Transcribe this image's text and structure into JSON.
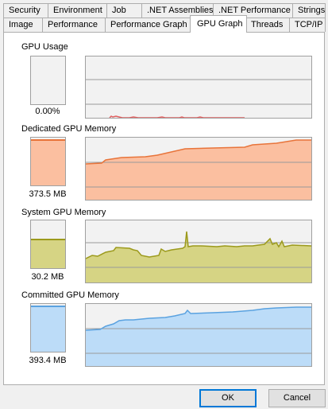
{
  "tabs_row1": [
    "Security",
    "Environment",
    "Job",
    ".NET Assemblies",
    ".NET Performance",
    "Strings"
  ],
  "tabs_row2": [
    "Image",
    "Performance",
    "Performance Graph",
    "GPU Graph",
    "Threads",
    "TCP/IP"
  ],
  "active_tab": "GPU Graph",
  "sections": [
    {
      "title": "GPU Usage",
      "value": "0.00%",
      "level": 0.0,
      "fill": "#f2f2f2",
      "stroke": "#e06060"
    },
    {
      "title": "Dedicated GPU Memory",
      "value": "373.5 MB",
      "level": 0.97,
      "fill": "#fbbfa0",
      "stroke": "#e8743a"
    },
    {
      "title": "System GPU Memory",
      "value": "30.2 MB",
      "level": 0.62,
      "fill": "#d6d484",
      "stroke": "#9c9a1c"
    },
    {
      "title": "Committed GPU Memory",
      "value": "393.4 MB",
      "level": 0.97,
      "fill": "#bcdcf8",
      "stroke": "#5aa2e0"
    }
  ],
  "buttons": {
    "ok": "OK",
    "cancel": "Cancel"
  }
}
